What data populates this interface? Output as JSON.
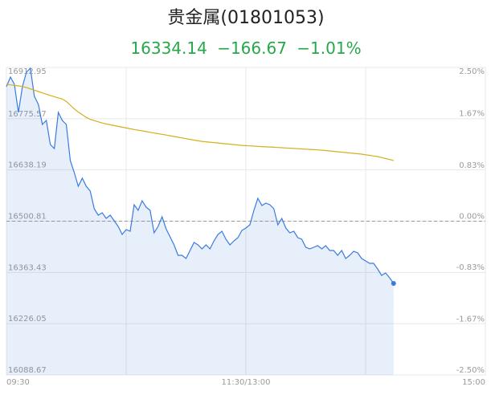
{
  "chart_data": {
    "type": "line",
    "title": "贵金属(01801053)",
    "subtitle": [
      "16334.14",
      "−166.67",
      "−1.01%"
    ],
    "subtitle_color": "#26a84a",
    "x": [
      0,
      2,
      4,
      6,
      8,
      10,
      12,
      14,
      16,
      18,
      20,
      22,
      24,
      26,
      28,
      30,
      32,
      34,
      36,
      38,
      40,
      42,
      44,
      46,
      48,
      50,
      52,
      54,
      56,
      58,
      60,
      62,
      64,
      66,
      68,
      70,
      72,
      74,
      76,
      78,
      80,
      82,
      84,
      86,
      88,
      90,
      92,
      94,
      96,
      98,
      100,
      102,
      104,
      106,
      108,
      110,
      112,
      114,
      116,
      118,
      120,
      122,
      124,
      126,
      128,
      130,
      132,
      134,
      136,
      138,
      140,
      142,
      144,
      146,
      148,
      150,
      152,
      154,
      156,
      158,
      160,
      162,
      164,
      166,
      168,
      170,
      172,
      174,
      176,
      178,
      180,
      182,
      184,
      186,
      188,
      190,
      192,
      194
    ],
    "series": [
      {
        "color": "#3a7be0",
        "area": true,
        "end_marker": true,
        "values": [
          16861.3,
          16887.12,
          16867.75,
          16792.43,
          16861.3,
          16900.04,
          16910.8,
          16835.47,
          16813.95,
          16760.14,
          16770.9,
          16706.34,
          16695.58,
          16792.43,
          16770.9,
          16760.14,
          16663.29,
          16631.01,
          16594.42,
          16615.95,
          16594.42,
          16581.51,
          16534.16,
          16516.95,
          16523.4,
          16508.34,
          16516.95,
          16501.88,
          16486.81,
          16465.29,
          16478.21,
          16473.9,
          16544.92,
          16529.86,
          16555.68,
          16538.47,
          16529.86,
          16469.6,
          16486.81,
          16512.64,
          16480.36,
          16458.84,
          16437.31,
          16409.34,
          16409.34,
          16400.73,
          16422.25,
          16443.77,
          16437.31,
          16426.55,
          16437.31,
          16426.55,
          16448.07,
          16465.29,
          16473.9,
          16452.38,
          16437.31,
          16448.07,
          16456.68,
          16476.05,
          16482.51,
          16491.12,
          16529.86,
          16562.14,
          16542.77,
          16549.23,
          16544.92,
          16534.16,
          16491.12,
          16508.34,
          16482.51,
          16469.6,
          16473.9,
          16456.68,
          16452.38,
          16430.86,
          16426.55,
          16430.86,
          16435.16,
          16426.55,
          16435.16,
          16422.25,
          16422.25,
          16409.34,
          16422.25,
          16400.73,
          16409.34,
          16420.1,
          16415.79,
          16400.73,
          16394.27,
          16387.81,
          16387.81,
          16372.75,
          16355.53,
          16361.99,
          16349.07,
          16334.14
        ]
      },
      {
        "color": "#d4b01c",
        "values": [
          16867.75,
          16866.25,
          16864.74,
          16863.45,
          16861.94,
          16859.14,
          16855.49,
          16852.04,
          16848.38,
          16844.73,
          16841.28,
          16837.84,
          16834.61,
          16831.38,
          16828.15,
          16821.91,
          16811.8,
          16801.9,
          16793.29,
          16786.19,
          16779.08,
          16773.7,
          16770.47,
          16767.25,
          16764.02,
          16761.44,
          16759.28,
          16757.13,
          16754.98,
          16752.83,
          16750.67,
          16748.52,
          16746.58,
          16744.65,
          16742.93,
          16740.99,
          16739.05,
          16737.12,
          16735.39,
          16733.67,
          16731.73,
          16729.8,
          16727.86,
          16725.92,
          16723.99,
          16722.05,
          16720.11,
          16718.18,
          16716.24,
          16714.73,
          16713.66,
          16712.58,
          16711.5,
          16710.43,
          16709.35,
          16708.28,
          16707.2,
          16706.12,
          16705.05,
          16703.97,
          16703.33,
          16702.68,
          16702.03,
          16701.39,
          16700.74,
          16700.1,
          16699.67,
          16699.02,
          16698.38,
          16697.73,
          16697.08,
          16696.44,
          16695.79,
          16695.15,
          16694.5,
          16693.86,
          16693.21,
          16692.56,
          16691.92,
          16691.27,
          16690.2,
          16689.12,
          16688.05,
          16686.97,
          16685.89,
          16684.82,
          16683.74,
          16682.66,
          16681.59,
          16680.51,
          16678.79,
          16677.29,
          16675.57,
          16674.06,
          16671.48,
          16668.68,
          16666.09,
          16663.28
        ]
      }
    ],
    "xlim": [
      0,
      240
    ],
    "xticks": [
      {
        "value": 0,
        "label": "09:30"
      },
      {
        "value": 60,
        "label": null
      },
      {
        "value": 120,
        "label": "11:30/13:00"
      },
      {
        "value": 180,
        "label": null
      },
      {
        "value": 240,
        "label": "15:00"
      }
    ],
    "ylim": [
      16088.67,
      16912.95
    ],
    "yticks": [
      16912.95,
      16775.57,
      16638.19,
      16500.81,
      16363.43,
      16226.05,
      16088.67
    ],
    "y2lim": [
      -2.5,
      2.5
    ],
    "y2ticks": [
      {
        "value": 2.5,
        "label": "2.50%"
      },
      {
        "value": 1.67,
        "label": "1.67%"
      },
      {
        "value": 0.83,
        "label": "0.83%"
      },
      {
        "value": 0,
        "label": "0.00%"
      },
      {
        "value": -0.83,
        "label": "-0.83%"
      },
      {
        "value": -1.67,
        "label": "-1.67%"
      },
      {
        "value": -2.5,
        "label": "-2.50%"
      }
    ],
    "grid": true
  }
}
